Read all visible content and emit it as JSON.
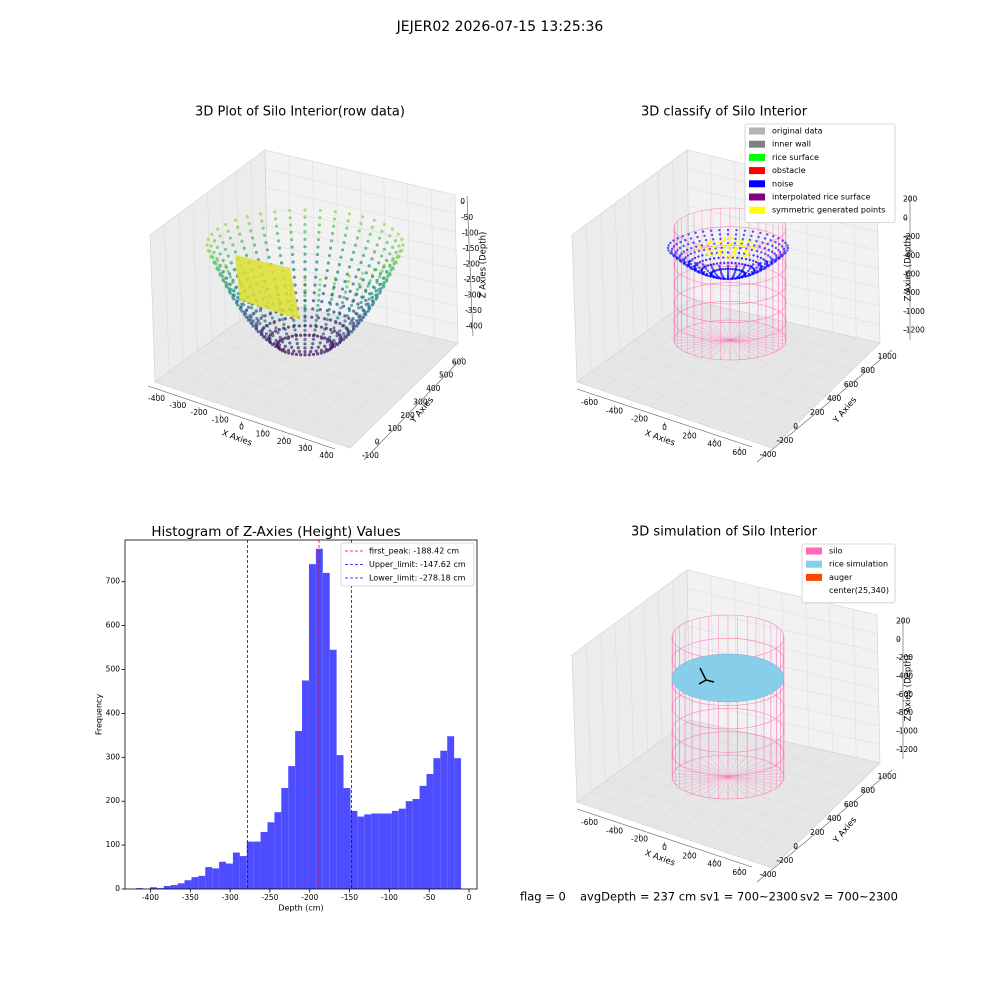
{
  "title": "JEJER02 2026-07-15 13:25:36",
  "chart_data": [
    {
      "type": "scatter3d",
      "title": "3D Plot of Silo Interior(row data)",
      "xlabel": "X Axies",
      "ylabel": "Y Axies",
      "zlabel": "Z Axies (Depth)",
      "xlim": [
        -440,
        440
      ],
      "ylim": [
        -130,
        640
      ],
      "zlim": [
        -430,
        20
      ],
      "xticks": [
        -400,
        -300,
        -200,
        -100,
        0,
        100,
        200,
        300,
        400
      ],
      "yticks": [
        -100,
        0,
        100,
        200,
        300,
        400,
        500,
        600
      ],
      "zticks": [
        0,
        -50,
        -100,
        -150,
        -200,
        -250,
        -300,
        -350,
        -400
      ]
    },
    {
      "type": "classify3d",
      "title": "3D classify of Silo Interior",
      "xlabel": "X Axies",
      "ylabel": "Y Axies",
      "zlabel": "Z Axies (Depth)",
      "xlim": [
        -700,
        700
      ],
      "ylim": [
        -500,
        1100
      ],
      "zlim": [
        -1300,
        250
      ],
      "xticks": [
        -600,
        -400,
        -200,
        0,
        200,
        400,
        600
      ],
      "yticks": [
        -400,
        -200,
        0,
        200,
        400,
        600,
        800,
        1000
      ],
      "zticks": [
        200,
        0,
        -200,
        -400,
        -600,
        -800,
        -1000,
        -1200
      ],
      "legend": [
        {
          "name": "original data",
          "color": "#b3b3b3"
        },
        {
          "name": "inner wall",
          "color": "#808080"
        },
        {
          "name": "rice surface",
          "color": "#00ff00"
        },
        {
          "name": "obstacle",
          "color": "#ff0000"
        },
        {
          "name": "noise",
          "color": "#0000ff"
        },
        {
          "name": "interpolated rice surface",
          "color": "#800080"
        },
        {
          "name": "symmetric generated points",
          "color": "#ffff00"
        }
      ]
    },
    {
      "type": "histogram",
      "title": "Histogram of Z-Axies (Height) Values",
      "xlabel": "Depth (cm)",
      "ylabel": "Frequency",
      "color": "#4d4dff",
      "xlim": [
        -432,
        10
      ],
      "ylim": [
        0,
        795
      ],
      "xticks": [
        -400,
        -350,
        -300,
        -250,
        -200,
        -150,
        -100,
        -50,
        0
      ],
      "yticks": [
        0,
        100,
        200,
        300,
        400,
        500,
        600,
        700
      ],
      "bins": [
        -418,
        -409.32,
        -400.64,
        -391.96,
        -383.28,
        -374.6,
        -365.92,
        -357.24,
        -348.56,
        -339.88,
        -331.2,
        -322.52,
        -313.84,
        -305.16,
        -296.48,
        -287.8,
        -279.12,
        -270.44,
        -261.76,
        -253.08,
        -244.4,
        -235.72,
        -227.04,
        -218.36,
        -209.68,
        -201,
        -192.32,
        -183.64,
        -174.96,
        -166.28,
        -157.6,
        -148.92,
        -140.24,
        -131.56,
        -122.88,
        -114.2,
        -105.52,
        -96.84,
        -88.16,
        -79.48,
        -70.8,
        -62.12,
        -53.44,
        -44.76,
        -36.08,
        -27.4,
        -18.72,
        -10.04
      ],
      "values": [
        2,
        0,
        4,
        2,
        7,
        9,
        13,
        20,
        27,
        30,
        50,
        47,
        62,
        58,
        83,
        75,
        108,
        108,
        130,
        152,
        175,
        230,
        280,
        360,
        475,
        740,
        775,
        720,
        545,
        305,
        230,
        178,
        165,
        170,
        172,
        172,
        172,
        178,
        183,
        200,
        205,
        235,
        262,
        298,
        315,
        348,
        298
      ],
      "lines": [
        {
          "label": "first_peak: -188.42 cm",
          "value": -188.42,
          "color": "#ff0000"
        },
        {
          "label": "Upper_limit: -147.62 cm",
          "value": -147.62,
          "color": "#0000ff"
        },
        {
          "label": "Lower_limit: -278.18 cm",
          "value": -278.18,
          "color": "#0000ff"
        }
      ]
    },
    {
      "type": "simulation3d",
      "title": "3D simulation of Silo Interior",
      "xlabel": "X Axies",
      "ylabel": "Y Axies",
      "zlabel": "Z Axies (Depth)",
      "xlim": [
        -700,
        700
      ],
      "ylim": [
        -500,
        1100
      ],
      "zlim": [
        -1300,
        250
      ],
      "xticks": [
        -600,
        -400,
        -200,
        0,
        200,
        400,
        600
      ],
      "yticks": [
        -400,
        -200,
        0,
        200,
        400,
        600,
        800,
        1000
      ],
      "zticks": [
        200,
        0,
        -200,
        -400,
        -600,
        -800,
        -1000,
        -1200
      ],
      "legend": [
        {
          "name": "silo",
          "color": "#ff69b4"
        },
        {
          "name": "rice simulation",
          "color": "#87ceeb"
        },
        {
          "name": "auger",
          "color": "#ff4500"
        },
        {
          "name": "center(25,340)",
          "color": null
        }
      ]
    }
  ],
  "footer": [
    "flag = 0",
    "avgDepth = 237 cm",
    "sv1 = 700~2300",
    "sv2 = 700~2300"
  ]
}
